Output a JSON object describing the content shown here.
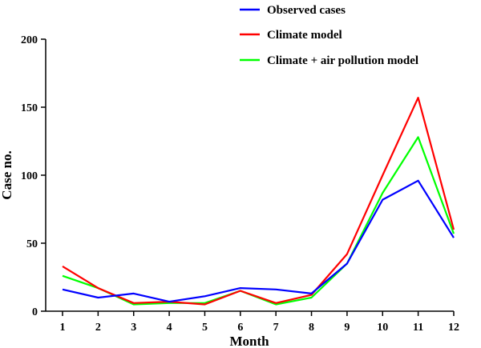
{
  "chart_data": {
    "type": "line",
    "title": "",
    "xlabel": "Month",
    "ylabel": "Case no.",
    "categories": [
      "1",
      "2",
      "3",
      "4",
      "5",
      "6",
      "7",
      "8",
      "9",
      "10",
      "11",
      "12"
    ],
    "ylim": [
      0,
      200
    ],
    "yticks": [
      "0",
      "50",
      "100",
      "150",
      "200"
    ],
    "grid": false,
    "legend_position": "top-right",
    "series": [
      {
        "name": "Observed cases",
        "color": "#0000ff",
        "values": [
          16,
          10,
          13,
          7,
          11,
          17,
          16,
          13,
          35,
          82,
          96,
          54
        ]
      },
      {
        "name": "Climate model",
        "color": "#ff0000",
        "values": [
          33,
          17,
          6,
          7,
          5,
          15,
          6,
          12,
          42,
          100,
          157,
          60
        ]
      },
      {
        "name": "Climate + air pollution model",
        "color": "#00ff00",
        "values": [
          26,
          17,
          5,
          6,
          6,
          15,
          5,
          10,
          35,
          87,
          128,
          57
        ]
      }
    ]
  }
}
